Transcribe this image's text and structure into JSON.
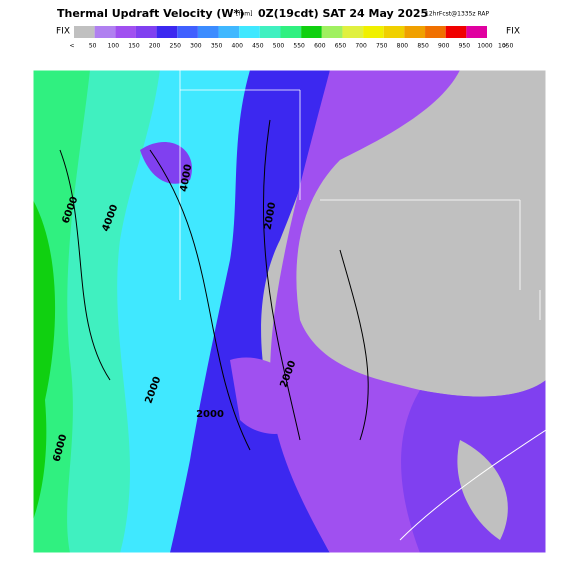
{
  "header": {
    "title": "Thermal Updraft Velocity (W*)",
    "units": "[fpm]",
    "valid_time": "0Z(19cdt) SAT 24 May 2025",
    "forecast": "12hrFcst@1335z RAP"
  },
  "legend": {
    "left_label": "FIX",
    "right_label": "FIX",
    "colors": [
      "#c0c0c0",
      "#b080f0",
      "#a050f0",
      "#8040f0",
      "#3c28f0",
      "#4060ff",
      "#3c8cff",
      "#40b8ff",
      "#40e8ff",
      "#40f0c0",
      "#30f080",
      "#10d010",
      "#a0f060",
      "#e0f040",
      "#f0f000",
      "#f0d000",
      "#f0a000",
      "#f07000",
      "#f00000",
      "#e000a0"
    ],
    "labels": [
      "<",
      "50",
      "100",
      "150",
      "200",
      "250",
      "300",
      "350",
      "400",
      "450",
      "500",
      "550",
      "600",
      "650",
      "700",
      "750",
      "800",
      "850",
      "900",
      "950",
      "1000",
      "1050",
      ">"
    ]
  },
  "map": {
    "contour_labels": [
      "6000",
      "4000",
      "4000",
      "2000",
      "2000",
      "2000",
      "2000",
      "6000"
    ]
  }
}
